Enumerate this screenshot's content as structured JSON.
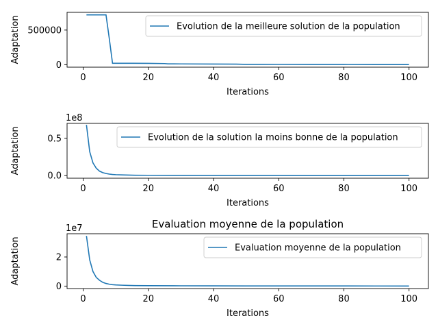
{
  "figure": {
    "colors": {
      "line": "#1f77b4",
      "axis": "#000000",
      "legend_border": "#cccccc"
    }
  },
  "chart_data": [
    {
      "type": "line",
      "title": "",
      "xlabel": "Iterations",
      "ylabel": "Adaptation",
      "xlim": [
        -4.95,
        105.95
      ],
      "ylim": [
        -36000,
        756000
      ],
      "offset_text": "",
      "xticks": [
        0,
        20,
        40,
        60,
        80,
        100
      ],
      "xtick_labels": [
        "0",
        "20",
        "40",
        "60",
        "80",
        "100"
      ],
      "yticks": [
        0,
        500000
      ],
      "ytick_labels": [
        "0",
        "500000"
      ],
      "legend": {
        "location": "upper right",
        "entries": [
          "Evolution de la meilleure solution de la population"
        ]
      },
      "series": [
        {
          "name": "Evolution de la meilleure solution de la population",
          "x": [
            1,
            7,
            8,
            9,
            15,
            20,
            25,
            26,
            30,
            40,
            47,
            50,
            60,
            70,
            80,
            90,
            100
          ],
          "y": [
            720000,
            720000,
            380000,
            20000,
            20000,
            19000,
            16000,
            12000,
            11000,
            9000,
            7500,
            4000,
            3500,
            3000,
            2500,
            2000,
            1800
          ]
        }
      ]
    },
    {
      "type": "line",
      "title": "",
      "xlabel": "Iterations",
      "ylabel": "Adaptation",
      "xlim": [
        -4.95,
        105.95
      ],
      "ylim": [
        -0.035,
        0.7
      ],
      "offset_text": "1e8",
      "xticks": [
        0,
        20,
        40,
        60,
        80,
        100
      ],
      "xtick_labels": [
        "0",
        "20",
        "40",
        "60",
        "80",
        "100"
      ],
      "yticks": [
        0,
        0.5
      ],
      "ytick_labels": [
        "0.0",
        "0.5"
      ],
      "legend": {
        "location": "upper right",
        "entries": [
          "Evolution de la solution la moins bonne de la population"
        ]
      },
      "series": [
        {
          "name": "Evolution de la solution la moins bonne de la population",
          "x": [
            1,
            2,
            3,
            4,
            5,
            6,
            7,
            8,
            9,
            10,
            12,
            14,
            16,
            20,
            30,
            40,
            50,
            60,
            70,
            80,
            90,
            100
          ],
          "y": [
            0.68,
            0.32,
            0.17,
            0.1,
            0.06,
            0.04,
            0.028,
            0.02,
            0.015,
            0.012,
            0.009,
            0.007,
            0.005,
            0.004,
            0.003,
            0.0025,
            0.002,
            0.002,
            0.0015,
            0.0015,
            0.001,
            0.001
          ]
        }
      ]
    },
    {
      "type": "line",
      "title": "Evaluation  moyenne de la population",
      "xlabel": "Iterations",
      "ylabel": "Adaptation",
      "xlim": [
        -4.95,
        105.95
      ],
      "ylim": [
        -0.17,
        3.6
      ],
      "offset_text": "1e7",
      "xticks": [
        0,
        20,
        40,
        60,
        80,
        100
      ],
      "xtick_labels": [
        "0",
        "20",
        "40",
        "60",
        "80",
        "100"
      ],
      "yticks": [
        0,
        2
      ],
      "ytick_labels": [
        "0",
        "2"
      ],
      "legend": {
        "location": "upper right",
        "entries": [
          "Evaluation  moyenne de la population"
        ]
      },
      "series": [
        {
          "name": "Evaluation  moyenne de la population",
          "x": [
            1,
            2,
            3,
            4,
            5,
            6,
            7,
            8,
            9,
            10,
            12,
            14,
            16,
            20,
            30,
            40,
            50,
            60,
            70,
            80,
            90,
            100
          ],
          "y": [
            3.45,
            1.8,
            1.0,
            0.6,
            0.4,
            0.26,
            0.18,
            0.13,
            0.1,
            0.08,
            0.06,
            0.045,
            0.035,
            0.025,
            0.018,
            0.014,
            0.011,
            0.01,
            0.009,
            0.008,
            0.007,
            0.006
          ]
        }
      ]
    }
  ]
}
